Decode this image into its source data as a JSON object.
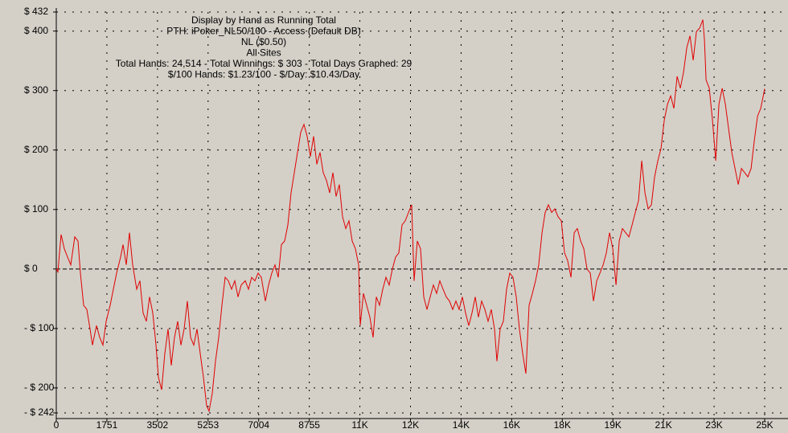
{
  "chart_data": {
    "type": "line",
    "title_lines": [
      "Display by Hand as Running Total",
      "PTH: iPoker_NL50/100 - Access (Default DB)",
      "NL ($0.50)",
      "All Sites",
      "Total Hands: 24,514 - Total Winnings: $ 303 - Total Days Graphed: 29",
      "$/100 Hands: $1.23/100 - $/Day: $10.43/Day"
    ],
    "xlim": [
      0,
      24514
    ],
    "ylim": [
      -242,
      432
    ],
    "xticks": [
      0,
      1751,
      3502,
      5253,
      7004,
      8755,
      {
        "value": 10506,
        "label": "11K"
      },
      {
        "value": 12257,
        "label": "12K"
      },
      {
        "value": 14008,
        "label": "14K"
      },
      {
        "value": 15759,
        "label": "16K"
      },
      {
        "value": 17510,
        "label": "18K"
      },
      {
        "value": 19261,
        "label": "19K"
      },
      {
        "value": 21012,
        "label": "21K"
      },
      {
        "value": 22763,
        "label": "23K"
      },
      {
        "value": 24514,
        "label": "25K"
      }
    ],
    "yticks": [
      {
        "value": 432,
        "label": "$ 432"
      },
      {
        "value": 400,
        "label": "$ 400"
      },
      {
        "value": 300,
        "label": "$ 300"
      },
      {
        "value": 200,
        "label": "$ 200"
      },
      {
        "value": 100,
        "label": "$ 100"
      },
      {
        "value": 0,
        "label": "$ 0"
      },
      {
        "value": -100,
        "label": "- $ 100"
      },
      {
        "value": -200,
        "label": "- $ 200"
      },
      {
        "value": -242,
        "label": "- $ 242"
      }
    ],
    "grid": true,
    "series": [
      {
        "color": "#e00000",
        "x": [
          0,
          56,
          167,
          278,
          390,
          500,
          640,
          750,
          835,
          946,
          1057,
          1169,
          1252,
          1391,
          1503,
          1614,
          1725,
          1864,
          1975,
          2087,
          2226,
          2309,
          2421,
          2532,
          2643,
          2783,
          2894,
          3005,
          3116,
          3228,
          3339,
          3450,
          3534,
          3645,
          3756,
          3867,
          3979,
          4090,
          4201,
          4313,
          4424,
          4535,
          4647,
          4758,
          4869,
          4981,
          5092,
          5203,
          5287,
          5398,
          5509,
          5621,
          5732,
          5843,
          5955,
          6066,
          6177,
          6289,
          6400,
          6539,
          6650,
          6762,
          6873,
          6984,
          7096,
          7235,
          7346,
          7457,
          7569,
          7680,
          7791,
          7903,
          8014,
          8125,
          8236,
          8348,
          8459,
          8570,
          8682,
          8793,
          8904,
          9016,
          9127,
          9238,
          9350,
          9461,
          9572,
          9684,
          9795,
          9906,
          10018,
          10129,
          10240,
          10352,
          10463,
          10518,
          10630,
          10741,
          10852,
          10964,
          11075,
          11186,
          11298,
          11409,
          11520,
          11631,
          11743,
          11854,
          11965,
          12077,
          12188,
          12299,
          12383,
          12494,
          12605,
          12717,
          12828,
          12939,
          13051,
          13162,
          13273,
          13385,
          13496,
          13607,
          13719,
          13830,
          13941,
          14052,
          14164,
          14275,
          14386,
          14498,
          14609,
          14720,
          14832,
          14943,
          15054,
          15166,
          15249,
          15360,
          15472,
          15583,
          15694,
          15806,
          15917,
          16028,
          16140,
          16251,
          16362,
          16474,
          16585,
          16696,
          16808,
          16919,
          17030,
          17142,
          17253,
          17364,
          17476,
          17587,
          17698,
          17810,
          17921,
          18032,
          18144,
          18255,
          18366,
          18478,
          18589,
          18700,
          18812,
          18923,
          19034,
          19146,
          19257,
          19368,
          19480,
          19591,
          19703,
          19814,
          19925,
          20037,
          20148,
          20259,
          20371,
          20482,
          20593,
          20705,
          20816,
          20927,
          21039,
          21150,
          21261,
          21373,
          21484,
          21595,
          21707,
          21818,
          21929,
          22041,
          22152,
          22263,
          22375,
          22430,
          22486,
          22597,
          22709,
          22820,
          22931,
          23043,
          23154,
          23265,
          23377,
          23488,
          23599,
          23711,
          23822,
          23933,
          24045,
          24156,
          24267,
          24379,
          24514
        ],
        "values": [
          0,
          -5,
          58,
          34,
          20,
          7,
          54,
          47,
          -7,
          -61,
          -68,
          -101,
          -128,
          -95,
          -115,
          -128,
          -88,
          -61,
          -34,
          -7,
          20,
          41,
          7,
          61,
          7,
          -34,
          -20,
          -74,
          -88,
          -47,
          -74,
          -128,
          -182,
          -203,
          -142,
          -101,
          -162,
          -115,
          -88,
          -128,
          -101,
          -54,
          -115,
          -128,
          -101,
          -142,
          -182,
          -230,
          -239,
          -209,
          -155,
          -115,
          -61,
          -14,
          -20,
          -34,
          -20,
          -47,
          -27,
          -20,
          -34,
          -14,
          -20,
          -7,
          -14,
          -54,
          -27,
          -7,
          7,
          -14,
          41,
          47,
          74,
          128,
          162,
          196,
          230,
          243,
          223,
          189,
          223,
          176,
          196,
          162,
          149,
          128,
          162,
          122,
          142,
          88,
          68,
          81,
          47,
          34,
          7,
          -95,
          -41,
          -61,
          -81,
          -115,
          -47,
          -61,
          -34,
          -14,
          -27,
          0,
          20,
          27,
          74,
          81,
          95,
          108,
          -20,
          47,
          34,
          -47,
          -68,
          -47,
          -27,
          -41,
          -20,
          -34,
          -47,
          -54,
          -68,
          -54,
          -68,
          -47,
          -74,
          -95,
          -74,
          -47,
          -81,
          -54,
          -68,
          -88,
          -68,
          -101,
          -155,
          -101,
          -88,
          -34,
          -7,
          -14,
          -47,
          -101,
          -142,
          -176,
          -61,
          -41,
          -20,
          7,
          61,
          95,
          108,
          95,
          101,
          88,
          81,
          27,
          14,
          -14,
          61,
          68,
          47,
          34,
          0,
          -7,
          -54,
          -20,
          -7,
          7,
          27,
          61,
          34,
          -27,
          47,
          68,
          61,
          54,
          74,
          95,
          115,
          182,
          128,
          101,
          108,
          155,
          182,
          203,
          250,
          277,
          291,
          270,
          324,
          304,
          331,
          372,
          392,
          351,
          399,
          405,
          419,
          385,
          318,
          304,
          250,
          182,
          277,
          304,
          277,
          236,
          196,
          169,
          142,
          169,
          162,
          155,
          169,
          216,
          257,
          270,
          303
        ]
      }
    ]
  }
}
